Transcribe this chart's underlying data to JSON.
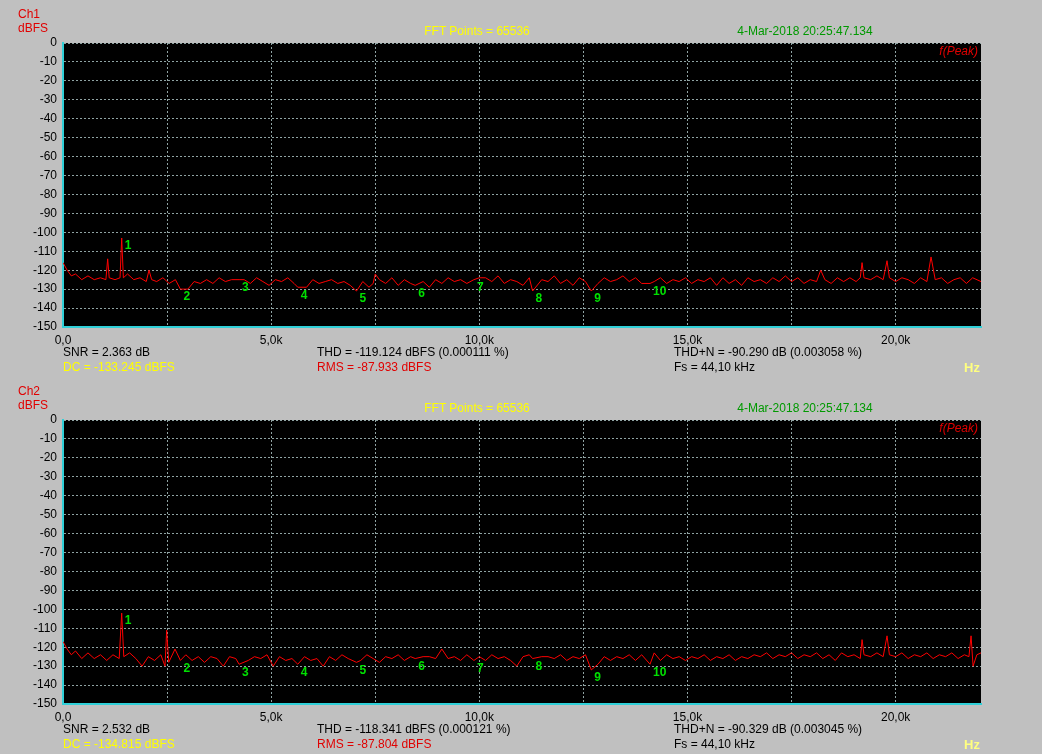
{
  "chart_data": [
    {
      "type": "line",
      "title": "FFT Points = 65536",
      "ylabel": "dBFS",
      "xlabel": "Hz",
      "x": [
        0,
        100,
        200,
        300,
        450,
        600,
        750,
        900,
        1030,
        1073,
        1110,
        1250,
        1370,
        1410,
        1450,
        1550,
        1700,
        1850,
        2000,
        2066,
        2130,
        2250,
        2400,
        2550,
        2700,
        2820,
        3000,
        3150,
        3300,
        3450,
        3600,
        3750,
        3900,
        4050,
        4230,
        4350,
        4500,
        4650,
        4800,
        4950,
        5100,
        5250,
        5400,
        5550,
        5640,
        5850,
        6000,
        6150,
        6300,
        6450,
        6600,
        6750,
        6900,
        7050,
        7200,
        7350,
        7450,
        7500,
        7600,
        7750,
        7900,
        8050,
        8200,
        8350,
        8460,
        8650,
        8800,
        8950,
        9100,
        9250,
        9400,
        9550,
        9700,
        9870,
        10000,
        10150,
        10300,
        10450,
        10600,
        10750,
        10900,
        11050,
        11200,
        11280,
        11500,
        11650,
        11800,
        11950,
        12100,
        12250,
        12400,
        12550,
        12690,
        12850,
        13000,
        13150,
        13300,
        13450,
        13600,
        13750,
        13900,
        14100,
        14200,
        14350,
        14500,
        14650,
        14800,
        14950,
        15100,
        15250,
        15400,
        15550,
        15700,
        15850,
        16000,
        16150,
        16300,
        16450,
        16600,
        16750,
        16900,
        17050,
        17200,
        17350,
        17500,
        17650,
        17800,
        17950,
        18100,
        18200,
        18300,
        18450,
        18600,
        18750,
        18900,
        19050,
        19150,
        19193,
        19240,
        19400,
        19550,
        19700,
        19793,
        19850,
        20000,
        20150,
        20300,
        20450,
        20600,
        20750,
        20850,
        20950,
        21100,
        21250,
        21400,
        21550,
        21700,
        21850,
        22050
      ],
      "series": [
        {
          "color": "#ff0000",
          "values": [
            -116,
            -120,
            -123,
            -122,
            -125,
            -123,
            -125,
            -124,
            -125,
            -114,
            -124,
            -125,
            -124,
            -103,
            -124,
            -122,
            -125,
            -124,
            -126,
            -120,
            -125,
            -126,
            -124,
            -127,
            -125,
            -130,
            -130,
            -126,
            -127,
            -125,
            -127,
            -124,
            -126,
            -125,
            -125,
            -125,
            -127,
            -124,
            -126,
            -128,
            -125,
            -126,
            -124,
            -127,
            -129,
            -129,
            -125,
            -127,
            -126,
            -125,
            -127,
            -126,
            -128,
            -131,
            -126,
            -129,
            -127,
            -122,
            -125,
            -127,
            -124,
            -128,
            -125,
            -127,
            -128,
            -126,
            -129,
            -125,
            -127,
            -124,
            -126,
            -125,
            -127,
            -125,
            -124,
            -124,
            -126,
            -123,
            -127,
            -125,
            -126,
            -128,
            -124,
            -131,
            -125,
            -126,
            -123,
            -127,
            -125,
            -128,
            -124,
            -126,
            -131,
            -127,
            -124,
            -126,
            -125,
            -123,
            -126,
            -124,
            -127,
            -127,
            -126,
            -124,
            -127,
            -125,
            -126,
            -124,
            -127,
            -125,
            -126,
            -124,
            -128,
            -124,
            -127,
            -125,
            -128,
            -124,
            -126,
            -125,
            -127,
            -124,
            -126,
            -123,
            -126,
            -124,
            -127,
            -125,
            -126,
            -120,
            -125,
            -127,
            -124,
            -126,
            -124,
            -126,
            -124,
            -116,
            -124,
            -125,
            -123,
            -125,
            -115,
            -124,
            -126,
            -124,
            -125,
            -127,
            -124,
            -126,
            -113,
            -125,
            -124,
            -127,
            -125,
            -124,
            -127,
            -124,
            -126
          ]
        }
      ],
      "xlim": [
        0,
        22050
      ],
      "ylim": [
        -150,
        0
      ],
      "xticks": [
        {
          "value": 0,
          "label": "0,0"
        },
        {
          "value": 2500,
          "label": null
        },
        {
          "value": 5000,
          "label": "5,0k"
        },
        {
          "value": 7500,
          "label": null
        },
        {
          "value": 10000,
          "label": "10,0k"
        },
        {
          "value": 12500,
          "label": null
        },
        {
          "value": 15000,
          "label": "15,0k"
        },
        {
          "value": 17500,
          "label": null
        },
        {
          "value": 20000,
          "label": "20,0k"
        }
      ],
      "yticks": [
        0,
        -10,
        -20,
        -30,
        -40,
        -50,
        -60,
        -70,
        -80,
        -90,
        -100,
        -110,
        -120,
        -130,
        -140,
        -150
      ],
      "grid": true,
      "annotations": [
        "Ch1",
        "4-Mar-2018 20:25:47.134",
        "f(Peak)",
        "SNR = 2.363 dB",
        "DC = -133.245 dBFS",
        "THD = -119.124 dBFS (0.000111 %)",
        "RMS = -87.933 dBFS",
        "THD+N = -90.290 dB (0.003058 %)",
        "Fs = 44,10 kHz",
        {
          "text": "1",
          "x": 1410,
          "y": -103
        },
        {
          "text": "2",
          "x": 2820,
          "y": -130
        },
        {
          "text": "3",
          "x": 4230,
          "y": -125
        },
        {
          "text": "4",
          "x": 5640,
          "y": -129
        },
        {
          "text": "5",
          "x": 7050,
          "y": -131
        },
        {
          "text": "6",
          "x": 8460,
          "y": -128
        },
        {
          "text": "7",
          "x": 9870,
          "y": -125
        },
        {
          "text": "8",
          "x": 11280,
          "y": -131
        },
        {
          "text": "9",
          "x": 12690,
          "y": -131
        },
        {
          "text": "10",
          "x": 14100,
          "y": -127
        }
      ]
    },
    {
      "type": "line",
      "title": "FFT Points = 65536",
      "ylabel": "dBFS",
      "xlabel": "Hz",
      "x": [
        0,
        100,
        200,
        300,
        450,
        600,
        750,
        900,
        1050,
        1200,
        1350,
        1410,
        1460,
        1600,
        1750,
        1900,
        2050,
        2200,
        2350,
        2450,
        2490,
        2540,
        2690,
        2820,
        2950,
        3100,
        3250,
        3400,
        3550,
        3700,
        3850,
        4000,
        4150,
        4230,
        4450,
        4600,
        4750,
        4900,
        5050,
        5200,
        5350,
        5500,
        5640,
        5800,
        5950,
        6100,
        6250,
        6400,
        6550,
        6700,
        6850,
        7050,
        7150,
        7300,
        7450,
        7600,
        7750,
        7900,
        8050,
        8200,
        8350,
        8460,
        8650,
        8800,
        8950,
        9100,
        9250,
        9400,
        9550,
        9700,
        9870,
        10000,
        10150,
        10300,
        10450,
        10600,
        10750,
        10900,
        11050,
        11200,
        11280,
        11500,
        11650,
        11800,
        11950,
        12100,
        12250,
        12400,
        12550,
        12690,
        12850,
        13000,
        13150,
        13300,
        13450,
        13600,
        13750,
        13900,
        14100,
        14200,
        14350,
        14500,
        14650,
        14800,
        14950,
        15100,
        15250,
        15400,
        15550,
        15700,
        15850,
        16000,
        16150,
        16300,
        16450,
        16600,
        16750,
        16900,
        17050,
        17200,
        17350,
        17500,
        17650,
        17800,
        17950,
        18100,
        18250,
        18400,
        18550,
        18700,
        18850,
        19000,
        19150,
        19193,
        19240,
        19400,
        19550,
        19700,
        19793,
        19850,
        20000,
        20150,
        20300,
        20450,
        20600,
        20750,
        20900,
        21050,
        21200,
        21350,
        21500,
        21650,
        21760,
        21811,
        21860,
        21950,
        22050
      ],
      "series": [
        {
          "color": "#ff0000",
          "values": [
            -117,
            -121,
            -124,
            -122,
            -126,
            -123,
            -126,
            -124,
            -127,
            -124,
            -126,
            -102,
            -125,
            -123,
            -126,
            -130,
            -125,
            -127,
            -124,
            -130,
            -111,
            -128,
            -121,
            -127,
            -124,
            -127,
            -125,
            -128,
            -125,
            -126,
            -130,
            -125,
            -126,
            -129,
            -127,
            -125,
            -126,
            -124,
            -130,
            -125,
            -127,
            -126,
            -129,
            -125,
            -127,
            -126,
            -130,
            -125,
            -127,
            -124,
            -126,
            -128,
            -127,
            -124,
            -126,
            -128,
            -125,
            -126,
            -124,
            -127,
            -125,
            -126,
            -125,
            -125,
            -126,
            -121,
            -126,
            -125,
            -127,
            -124,
            -127,
            -125,
            -127,
            -124,
            -126,
            -125,
            -127,
            -130,
            -125,
            -124,
            -126,
            -125,
            -125,
            -126,
            -124,
            -127,
            -125,
            -126,
            -124,
            -132,
            -129,
            -125,
            -127,
            -125,
            -126,
            -124,
            -127,
            -124,
            -129,
            -123,
            -127,
            -124,
            -126,
            -125,
            -127,
            -125,
            -126,
            -124,
            -127,
            -125,
            -126,
            -124,
            -127,
            -125,
            -126,
            -124,
            -125,
            -123,
            -126,
            -124,
            -125,
            -123,
            -126,
            -124,
            -125,
            -123,
            -126,
            -124,
            -127,
            -123,
            -125,
            -124,
            -126,
            -116,
            -124,
            -125,
            -123,
            -125,
            -114,
            -124,
            -125,
            -123,
            -126,
            -124,
            -125,
            -123,
            -126,
            -124,
            -125,
            -123,
            -126,
            -124,
            -125,
            -114,
            -130,
            -124,
            -123
          ]
        }
      ],
      "xlim": [
        0,
        22050
      ],
      "ylim": [
        -150,
        0
      ],
      "xticks": [
        {
          "value": 0,
          "label": "0,0"
        },
        {
          "value": 2500,
          "label": null
        },
        {
          "value": 5000,
          "label": "5,0k"
        },
        {
          "value": 7500,
          "label": null
        },
        {
          "value": 10000,
          "label": "10,0k"
        },
        {
          "value": 12500,
          "label": null
        },
        {
          "value": 15000,
          "label": "15,0k"
        },
        {
          "value": 17500,
          "label": null
        },
        {
          "value": 20000,
          "label": "20,0k"
        }
      ],
      "yticks": [
        0,
        -10,
        -20,
        -30,
        -40,
        -50,
        -60,
        -70,
        -80,
        -90,
        -100,
        -110,
        -120,
        -130,
        -140,
        -150
      ],
      "grid": true,
      "annotations": [
        "Ch2",
        "4-Mar-2018 20:25:47.134",
        "f(Peak)",
        "SNR = 2.532 dB",
        "DC = -134.815 dBFS",
        "THD = -118.341 dBFS (0.000121 %)",
        "RMS = -87.804 dBFS",
        "THD+N = -90.329 dB (0.003045 %)",
        "Fs = 44,10 kHz",
        {
          "text": "1",
          "x": 1410,
          "y": -102
        },
        {
          "text": "2",
          "x": 2820,
          "y": -127
        },
        {
          "text": "3",
          "x": 4230,
          "y": -129
        },
        {
          "text": "4",
          "x": 5640,
          "y": -129
        },
        {
          "text": "5",
          "x": 7050,
          "y": -128
        },
        {
          "text": "6",
          "x": 8460,
          "y": -126
        },
        {
          "text": "7",
          "x": 9870,
          "y": -127
        },
        {
          "text": "8",
          "x": 11280,
          "y": -126
        },
        {
          "text": "9",
          "x": 12690,
          "y": -132
        },
        {
          "text": "10",
          "x": 14100,
          "y": -129
        }
      ]
    }
  ]
}
